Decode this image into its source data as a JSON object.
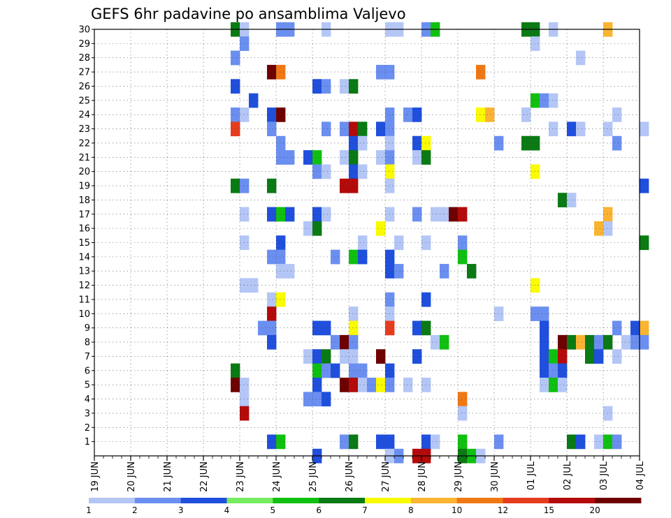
{
  "chart_data": {
    "type": "heatmap",
    "title": "GEFS 6hr padavine po ansamblima Valjevo",
    "xlabel": "",
    "ylabel": "",
    "grid": true,
    "x_tick_labels": [
      "19 JUN",
      "20 JUN",
      "21 JUN",
      "22 JUN",
      "23 JUN",
      "24 JUN",
      "25 JUN",
      "26 JUN",
      "27 JUN",
      "28 JUN",
      "29 JUN",
      "30 JUN",
      "01 JUL",
      "02 JUL",
      "03 JUL",
      "04 JUL"
    ],
    "y_tick_labels": [
      "1",
      "2",
      "3",
      "4",
      "5",
      "6",
      "7",
      "8",
      "9",
      "10",
      "11",
      "12",
      "13",
      "14",
      "15",
      "16",
      "17",
      "18",
      "19",
      "20",
      "21",
      "22",
      "23",
      "24",
      "25",
      "26",
      "27",
      "28",
      "29",
      "30"
    ],
    "xlim": [
      0,
      60
    ],
    "ylim": [
      0,
      30
    ],
    "legend": {
      "placement": "bottom",
      "thresholds": [
        "1",
        "2",
        "3",
        "4",
        "5",
        "6",
        "7",
        "8",
        "10",
        "12",
        "15",
        "20"
      ],
      "colors": [
        "#b4c6f6",
        "#6b8ff0",
        "#1f4fdc",
        "#78ec60",
        "#10c010",
        "#0a7a14",
        "#fafa00",
        "#fab432",
        "#f07814",
        "#e63c1e",
        "#b40a0a",
        "#6e0000"
      ]
    },
    "cells": [
      [
        15,
        30,
        6
      ],
      [
        16,
        30,
        1
      ],
      [
        20,
        30,
        2
      ],
      [
        21,
        30,
        2
      ],
      [
        25,
        30,
        1
      ],
      [
        32,
        30,
        1
      ],
      [
        33,
        30,
        1
      ],
      [
        36,
        30,
        2
      ],
      [
        37,
        30,
        5
      ],
      [
        47,
        30,
        6
      ],
      [
        48,
        30,
        6
      ],
      [
        50,
        30,
        1
      ],
      [
        56,
        30,
        8
      ],
      [
        16,
        29,
        2
      ],
      [
        48,
        29,
        1
      ],
      [
        15,
        28,
        2
      ],
      [
        53,
        28,
        1
      ],
      [
        19,
        27,
        12
      ],
      [
        20,
        27,
        9
      ],
      [
        31,
        27,
        2
      ],
      [
        32,
        27,
        2
      ],
      [
        42,
        27,
        9
      ],
      [
        15,
        26,
        3
      ],
      [
        24,
        26,
        3
      ],
      [
        25,
        26,
        2
      ],
      [
        27,
        26,
        1
      ],
      [
        28,
        26,
        6
      ],
      [
        17,
        25,
        3
      ],
      [
        48,
        25,
        5
      ],
      [
        49,
        25,
        2
      ],
      [
        50,
        25,
        1
      ],
      [
        15,
        24,
        2
      ],
      [
        16,
        24,
        1
      ],
      [
        19,
        24,
        3
      ],
      [
        20,
        24,
        12
      ],
      [
        32,
        24,
        2
      ],
      [
        34,
        24,
        2
      ],
      [
        35,
        24,
        3
      ],
      [
        42,
        24,
        7
      ],
      [
        43,
        24,
        8
      ],
      [
        47,
        24,
        1
      ],
      [
        57,
        24,
        1
      ],
      [
        15,
        23,
        10
      ],
      [
        19,
        23,
        2
      ],
      [
        25,
        23,
        2
      ],
      [
        27,
        23,
        2
      ],
      [
        28,
        23,
        11
      ],
      [
        29,
        23,
        6
      ],
      [
        31,
        23,
        3
      ],
      [
        32,
        23,
        2
      ],
      [
        50,
        23,
        1
      ],
      [
        52,
        23,
        3
      ],
      [
        53,
        23,
        1
      ],
      [
        56,
        23,
        1
      ],
      [
        60,
        23,
        1
      ],
      [
        20,
        22,
        2
      ],
      [
        28,
        22,
        3
      ],
      [
        29,
        22,
        1
      ],
      [
        32,
        22,
        1
      ],
      [
        35,
        22,
        3
      ],
      [
        36,
        22,
        7
      ],
      [
        44,
        22,
        2
      ],
      [
        47,
        22,
        6
      ],
      [
        48,
        22,
        6
      ],
      [
        57,
        22,
        2
      ],
      [
        20,
        21,
        2
      ],
      [
        21,
        21,
        2
      ],
      [
        23,
        21,
        3
      ],
      [
        24,
        21,
        5
      ],
      [
        27,
        21,
        1
      ],
      [
        28,
        21,
        6
      ],
      [
        31,
        21,
        1
      ],
      [
        32,
        21,
        2
      ],
      [
        35,
        21,
        1
      ],
      [
        36,
        21,
        6
      ],
      [
        24,
        20,
        2
      ],
      [
        25,
        20,
        1
      ],
      [
        28,
        20,
        3
      ],
      [
        29,
        20,
        1
      ],
      [
        32,
        20,
        7
      ],
      [
        48,
        20,
        7
      ],
      [
        15,
        19,
        6
      ],
      [
        16,
        19,
        2
      ],
      [
        19,
        19,
        6
      ],
      [
        27,
        19,
        11
      ],
      [
        28,
        19,
        11
      ],
      [
        32,
        19,
        1
      ],
      [
        60,
        19,
        3
      ],
      [
        51,
        18,
        6
      ],
      [
        52,
        18,
        1
      ],
      [
        16,
        17,
        1
      ],
      [
        19,
        17,
        3
      ],
      [
        20,
        17,
        5
      ],
      [
        21,
        17,
        3
      ],
      [
        24,
        17,
        3
      ],
      [
        25,
        17,
        1
      ],
      [
        32,
        17,
        1
      ],
      [
        35,
        17,
        2
      ],
      [
        37,
        17,
        1
      ],
      [
        38,
        17,
        1
      ],
      [
        39,
        17,
        12
      ],
      [
        40,
        17,
        11
      ],
      [
        56,
        17,
        8
      ],
      [
        23,
        16,
        1
      ],
      [
        24,
        16,
        6
      ],
      [
        31,
        16,
        7
      ],
      [
        55,
        16,
        8
      ],
      [
        56,
        16,
        1
      ],
      [
        16,
        15,
        1
      ],
      [
        20,
        15,
        3
      ],
      [
        29,
        15,
        1
      ],
      [
        33,
        15,
        1
      ],
      [
        36,
        15,
        1
      ],
      [
        40,
        15,
        2
      ],
      [
        60,
        15,
        6
      ],
      [
        19,
        14,
        2
      ],
      [
        20,
        14,
        2
      ],
      [
        26,
        14,
        2
      ],
      [
        28,
        14,
        5
      ],
      [
        29,
        14,
        3
      ],
      [
        32,
        14,
        3
      ],
      [
        40,
        14,
        5
      ],
      [
        20,
        13,
        1
      ],
      [
        21,
        13,
        1
      ],
      [
        32,
        13,
        3
      ],
      [
        33,
        13,
        2
      ],
      [
        38,
        13,
        2
      ],
      [
        41,
        13,
        6
      ],
      [
        16,
        12,
        1
      ],
      [
        17,
        12,
        1
      ],
      [
        48,
        12,
        7
      ],
      [
        19,
        11,
        1
      ],
      [
        20,
        11,
        7
      ],
      [
        32,
        11,
        2
      ],
      [
        36,
        11,
        3
      ],
      [
        19,
        10,
        11
      ],
      [
        28,
        10,
        1
      ],
      [
        32,
        10,
        1
      ],
      [
        44,
        10,
        1
      ],
      [
        48,
        10,
        2
      ],
      [
        49,
        10,
        2
      ],
      [
        18,
        9,
        2
      ],
      [
        19,
        9,
        2
      ],
      [
        24,
        9,
        3
      ],
      [
        25,
        9,
        3
      ],
      [
        28,
        9,
        7
      ],
      [
        32,
        9,
        10
      ],
      [
        35,
        9,
        3
      ],
      [
        36,
        9,
        6
      ],
      [
        49,
        9,
        3
      ],
      [
        57,
        9,
        2
      ],
      [
        59,
        9,
        3
      ],
      [
        60,
        9,
        8
      ],
      [
        19,
        8,
        3
      ],
      [
        26,
        8,
        2
      ],
      [
        27,
        8,
        12
      ],
      [
        28,
        8,
        2
      ],
      [
        37,
        8,
        1
      ],
      [
        38,
        8,
        5
      ],
      [
        49,
        8,
        3
      ],
      [
        51,
        8,
        12
      ],
      [
        52,
        8,
        6
      ],
      [
        53,
        8,
        8
      ],
      [
        54,
        8,
        6
      ],
      [
        55,
        8,
        2
      ],
      [
        56,
        8,
        6
      ],
      [
        58,
        8,
        1
      ],
      [
        59,
        8,
        2
      ],
      [
        60,
        8,
        2
      ],
      [
        23,
        7,
        1
      ],
      [
        24,
        7,
        3
      ],
      [
        25,
        7,
        6
      ],
      [
        27,
        7,
        1
      ],
      [
        28,
        7,
        1
      ],
      [
        31,
        7,
        12
      ],
      [
        35,
        7,
        3
      ],
      [
        49,
        7,
        3
      ],
      [
        50,
        7,
        5
      ],
      [
        51,
        7,
        11
      ],
      [
        54,
        7,
        6
      ],
      [
        55,
        7,
        3
      ],
      [
        57,
        7,
        1
      ],
      [
        15,
        6,
        6
      ],
      [
        24,
        6,
        5
      ],
      [
        25,
        6,
        2
      ],
      [
        26,
        6,
        3
      ],
      [
        28,
        6,
        2
      ],
      [
        29,
        6,
        2
      ],
      [
        32,
        6,
        3
      ],
      [
        49,
        6,
        3
      ],
      [
        50,
        6,
        2
      ],
      [
        51,
        6,
        3
      ],
      [
        15,
        5,
        12
      ],
      [
        16,
        5,
        1
      ],
      [
        24,
        5,
        3
      ],
      [
        27,
        5,
        12
      ],
      [
        28,
        5,
        11
      ],
      [
        29,
        5,
        1
      ],
      [
        30,
        5,
        2
      ],
      [
        31,
        5,
        7
      ],
      [
        32,
        5,
        2
      ],
      [
        34,
        5,
        1
      ],
      [
        36,
        5,
        1
      ],
      [
        49,
        5,
        1
      ],
      [
        50,
        5,
        5
      ],
      [
        51,
        5,
        1
      ],
      [
        16,
        4,
        1
      ],
      [
        23,
        4,
        2
      ],
      [
        24,
        4,
        2
      ],
      [
        25,
        4,
        3
      ],
      [
        40,
        4,
        9
      ],
      [
        16,
        3,
        11
      ],
      [
        40,
        3,
        1
      ],
      [
        56,
        3,
        1
      ],
      [
        19,
        1,
        3
      ],
      [
        20,
        1,
        5
      ],
      [
        27,
        1,
        2
      ],
      [
        28,
        1,
        6
      ],
      [
        31,
        1,
        3
      ],
      [
        32,
        1,
        3
      ],
      [
        36,
        1,
        3
      ],
      [
        37,
        1,
        1
      ],
      [
        40,
        1,
        5
      ],
      [
        44,
        1,
        2
      ],
      [
        52,
        1,
        6
      ],
      [
        53,
        1,
        3
      ],
      [
        55,
        1,
        1
      ],
      [
        56,
        1,
        5
      ],
      [
        57,
        1,
        2
      ],
      [
        24,
        0,
        3
      ],
      [
        32,
        0,
        1
      ],
      [
        33,
        0,
        2
      ],
      [
        35,
        0,
        11
      ],
      [
        36,
        0,
        11
      ],
      [
        40,
        0,
        6
      ],
      [
        41,
        0,
        5
      ],
      [
        42,
        0,
        1
      ]
    ]
  }
}
